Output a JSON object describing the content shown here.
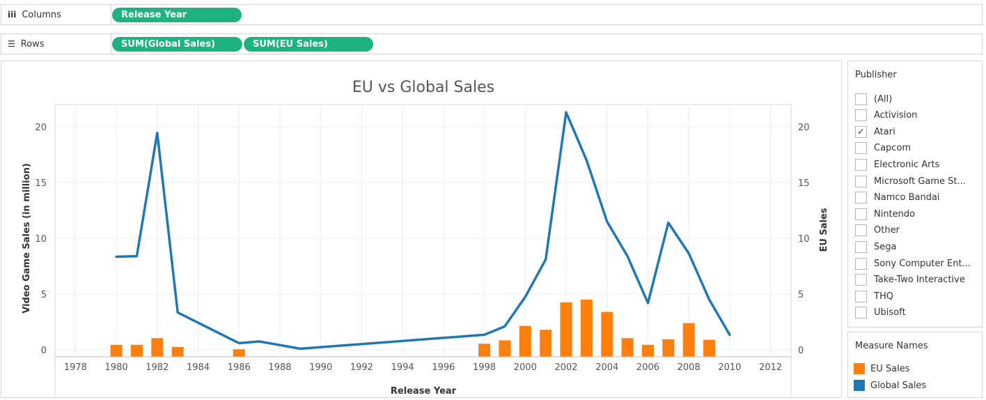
{
  "shelves": {
    "columns": {
      "label": "Columns",
      "icon": "iii",
      "pills": [
        "Release Year"
      ]
    },
    "rows": {
      "label": "Rows",
      "icon": "☰",
      "pills": [
        "SUM(Global Sales)",
        "SUM(EU Sales)"
      ]
    }
  },
  "filter": {
    "title": "Publisher",
    "items": [
      {
        "label": "(All)",
        "checked": false
      },
      {
        "label": "Activision",
        "checked": false
      },
      {
        "label": "Atari",
        "checked": true
      },
      {
        "label": "Capcom",
        "checked": false
      },
      {
        "label": "Electronic Arts",
        "checked": false
      },
      {
        "label": "Microsoft Game St...",
        "checked": false
      },
      {
        "label": "Namco Bandai",
        "checked": false
      },
      {
        "label": "Nintendo",
        "checked": false
      },
      {
        "label": "Other",
        "checked": false
      },
      {
        "label": "Sega",
        "checked": false
      },
      {
        "label": "Sony Computer Ent...",
        "checked": false
      },
      {
        "label": "Take-Two Interactive",
        "checked": false
      },
      {
        "label": "THQ",
        "checked": false
      },
      {
        "label": "Ubisoft",
        "checked": false
      }
    ]
  },
  "legend": {
    "title": "Measure Names",
    "items": [
      {
        "label": "EU Sales",
        "color": "#ff7f0e"
      },
      {
        "label": "Global Sales",
        "color": "#1f77b4"
      }
    ]
  },
  "chart_data": {
    "type": "bar",
    "title": "EU vs Global Sales",
    "xlabel": "Release Year",
    "ylabel": "Video Game Sales (in million)",
    "y2label": "EU Sales",
    "xlim": [
      1977,
      2013
    ],
    "xticks": [
      1978,
      1980,
      1982,
      1984,
      1986,
      1988,
      1990,
      1992,
      1994,
      1996,
      1998,
      2000,
      2002,
      2004,
      2006,
      2008,
      2010,
      2012
    ],
    "ylim": [
      -0.5,
      22
    ],
    "yticks": [
      0,
      5,
      10,
      15,
      20
    ],
    "y2ticks": [
      0,
      5,
      10,
      15,
      20
    ],
    "grid": true,
    "series": [
      {
        "name": "EU Sales",
        "type": "bar",
        "color": "#ff7f0e",
        "x": [
          1980,
          1981,
          1982,
          1983,
          1986,
          1998,
          1999,
          2000,
          2001,
          2002,
          2003,
          2004,
          2005,
          2006,
          2007,
          2008,
          2009
        ],
        "values": [
          0.45,
          0.45,
          1.05,
          0.25,
          0.05,
          0.55,
          0.85,
          2.15,
          1.8,
          4.25,
          4.5,
          3.4,
          1.05,
          0.45,
          0.95,
          2.4,
          0.9
        ]
      },
      {
        "name": "Global Sales",
        "type": "line",
        "color": "#1f77b4",
        "x": [
          1980,
          1981,
          1982,
          1983,
          1986,
          1987,
          1989,
          1998,
          1999,
          2000,
          2001,
          2002,
          2003,
          2004,
          2005,
          2006,
          2007,
          2008,
          2009,
          2010
        ],
        "values": [
          8.35,
          8.4,
          19.45,
          3.35,
          0.6,
          0.75,
          0.1,
          1.35,
          2.1,
          4.75,
          8.1,
          21.3,
          17.0,
          11.5,
          8.4,
          4.2,
          11.4,
          8.65,
          4.5,
          1.35
        ]
      }
    ]
  }
}
